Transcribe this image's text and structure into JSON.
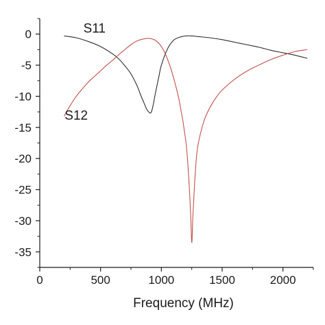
{
  "chart_data": {
    "type": "line",
    "title": "",
    "xlabel": "Frequency (MHz)",
    "ylabel": "",
    "xlim": [
      0,
      2250
    ],
    "ylim": [
      -37.5,
      2.5
    ],
    "xticks": [
      0,
      500,
      1000,
      1500,
      2000
    ],
    "yticks": [
      0,
      -5,
      -10,
      -15,
      -20,
      -25,
      -30,
      -35
    ],
    "xtick_labels": [
      "0",
      "500",
      "1000",
      "1500",
      "2000"
    ],
    "ytick_labels": [
      "0",
      "-5",
      "-10",
      "-15",
      "-20",
      "-25",
      "-30",
      "-35"
    ],
    "grid": false,
    "series": [
      {
        "name": "S11",
        "color": "#2b2b2b",
        "x": [
          200,
          300,
          400,
          500,
          600,
          650,
          700,
          750,
          800,
          830,
          860,
          880,
          900,
          910,
          920,
          935,
          950,
          980,
          1000,
          1050,
          1100,
          1150,
          1200,
          1250,
          1300,
          1400,
          1500,
          1600,
          1700,
          1800,
          1900,
          2000,
          2100,
          2200
        ],
        "y": [
          -0.3,
          -0.6,
          -1.2,
          -2.0,
          -3.2,
          -4.0,
          -5.1,
          -6.4,
          -8.3,
          -9.8,
          -11.2,
          -12.1,
          -12.6,
          -12.7,
          -12.4,
          -11.2,
          -9.6,
          -6.8,
          -5.0,
          -2.4,
          -1.0,
          -0.5,
          -0.3,
          -0.3,
          -0.4,
          -0.6,
          -0.9,
          -1.3,
          -1.7,
          -2.1,
          -2.6,
          -3.0,
          -3.4,
          -3.9
        ]
      },
      {
        "name": "S12",
        "color": "#c0504d",
        "x": [
          200,
          250,
          300,
          350,
          400,
          450,
          500,
          550,
          600,
          650,
          700,
          750,
          800,
          850,
          900,
          950,
          1000,
          1050,
          1100,
          1150,
          1200,
          1220,
          1240,
          1250,
          1260,
          1280,
          1300,
          1350,
          1400,
          1450,
          1500,
          1600,
          1700,
          1800,
          1900,
          2000,
          2100,
          2200
        ],
        "y": [
          -13.2,
          -11.5,
          -10.0,
          -8.8,
          -7.7,
          -6.8,
          -5.9,
          -5.0,
          -4.2,
          -3.3,
          -2.5,
          -1.7,
          -1.1,
          -0.8,
          -0.7,
          -1.0,
          -2.0,
          -4.0,
          -7.0,
          -11.0,
          -17.0,
          -21.5,
          -28.5,
          -33.5,
          -29.0,
          -22.0,
          -18.0,
          -14.0,
          -11.8,
          -10.2,
          -9.0,
          -7.3,
          -6.0,
          -5.0,
          -4.1,
          -3.4,
          -2.8,
          -2.5
        ]
      }
    ],
    "annotations": [
      {
        "text": "S11",
        "x": 450,
        "y": 1.0
      },
      {
        "text": "S12",
        "x": 300,
        "y": -13.0
      }
    ]
  }
}
